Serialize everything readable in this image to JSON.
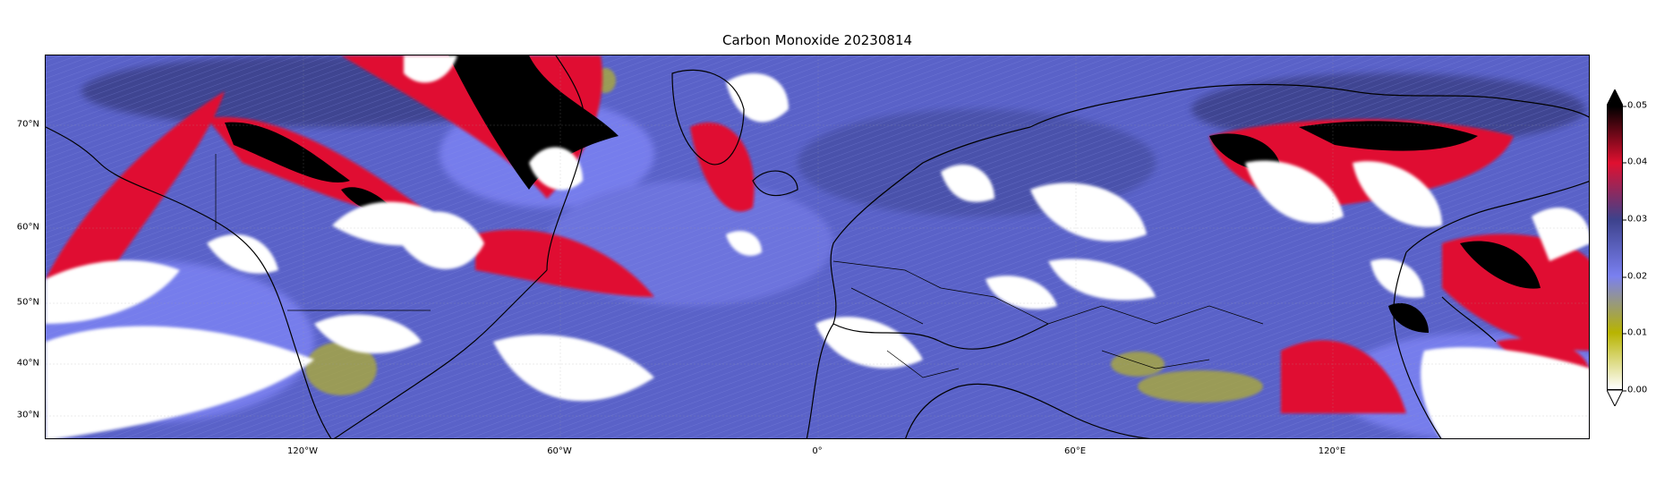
{
  "title": "Carbon Monoxide 20230814",
  "map": {
    "projection": "plate-carree",
    "lon_range": [
      -180,
      180
    ],
    "lat_range": [
      25,
      85
    ],
    "lat_labels": [
      "70°N",
      "60°N",
      "50°N",
      "40°N",
      "30°N"
    ],
    "lon_labels": [
      "120°W",
      "60°W",
      "0°",
      "60°E",
      "120°E"
    ],
    "features": [
      "coastlines",
      "country-borders"
    ],
    "field": "carbon monoxide column",
    "cloud_mask_color": "#ffffff"
  },
  "colorbar": {
    "ticks": [
      "0.00",
      "0.01",
      "0.02",
      "0.03",
      "0.04",
      "0.05"
    ],
    "range": [
      0.0,
      0.05
    ],
    "extend": "both",
    "colors": [
      "#ffffff",
      "#b8b400",
      "#7a80f0",
      "#3d428c",
      "#e01030",
      "#000000"
    ]
  },
  "colors": {
    "low_background": "#5a62c8",
    "high_plume": "#e01030",
    "extreme_plume": "#000000",
    "very_low": "#b0ae30",
    "cloud": "#ffffff"
  }
}
